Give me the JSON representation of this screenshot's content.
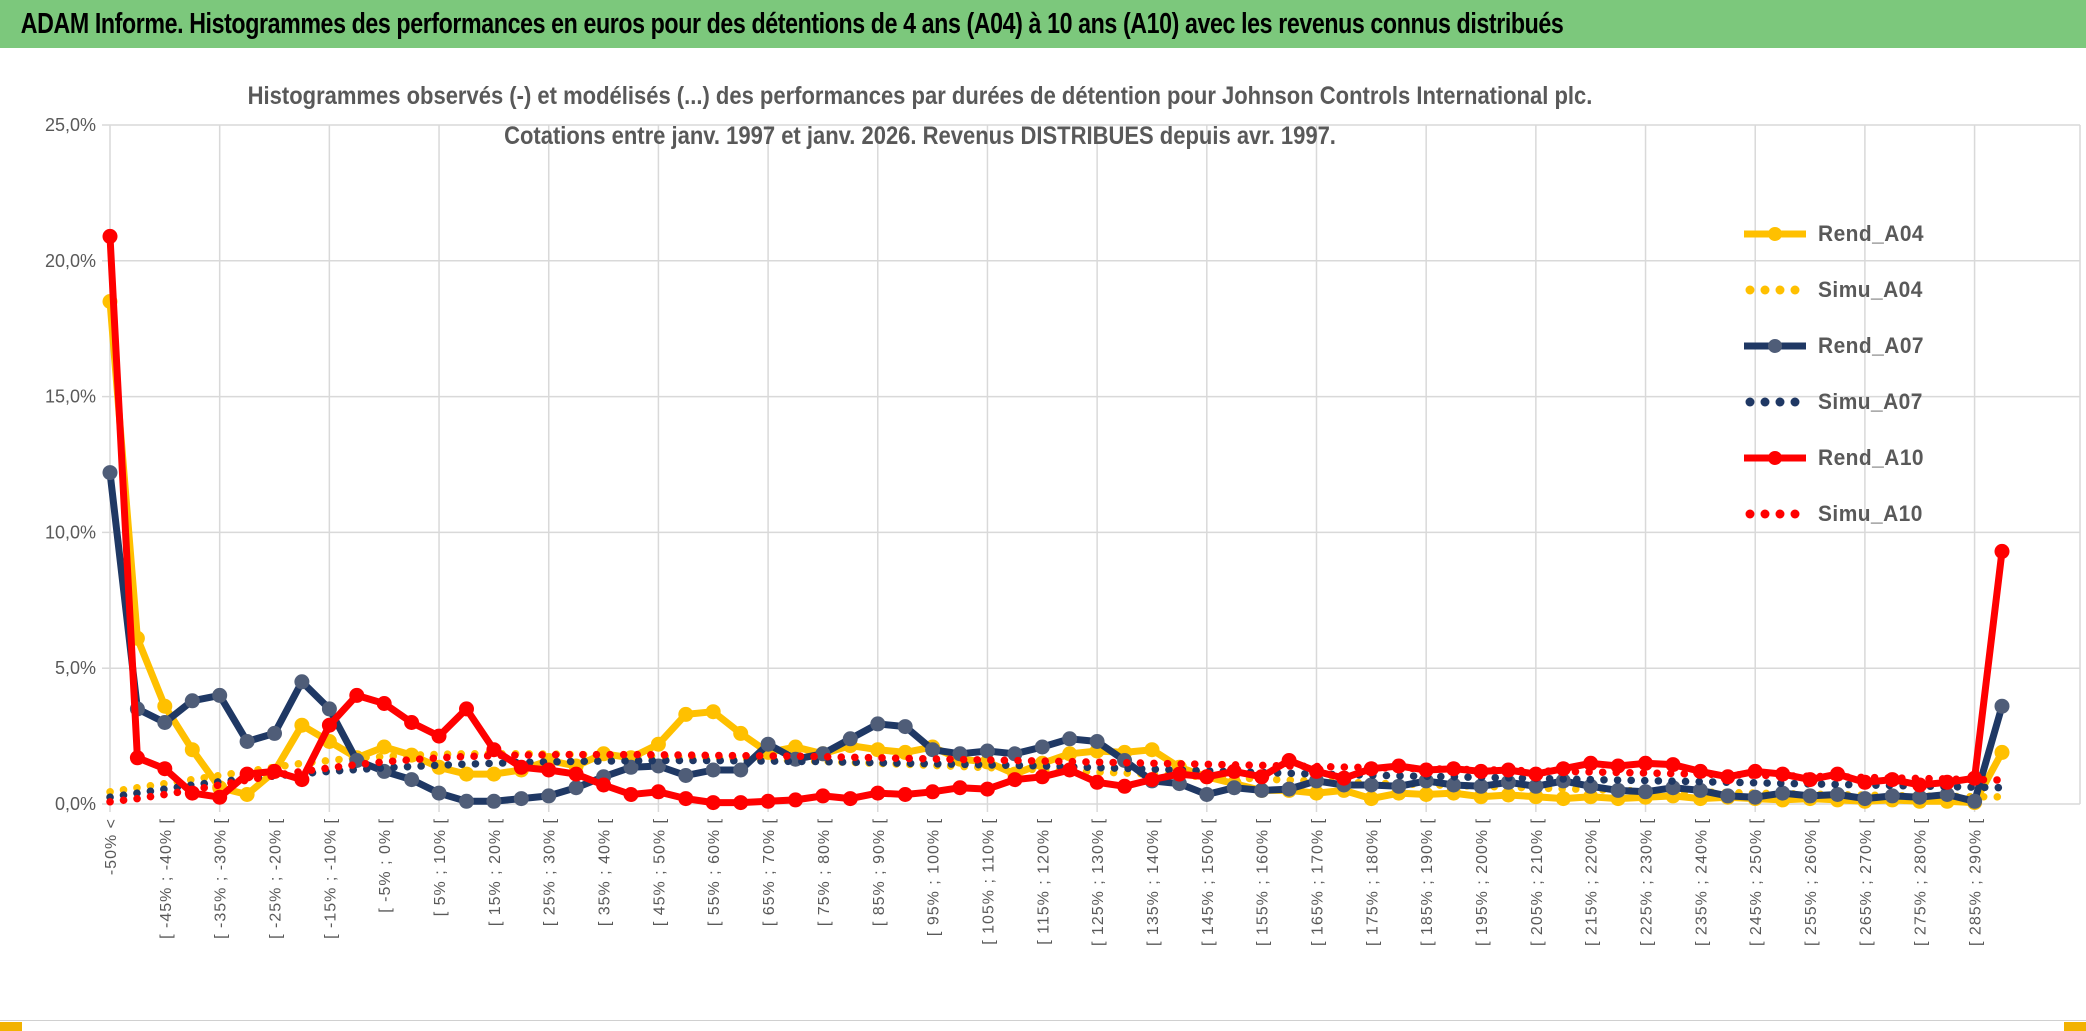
{
  "header": {
    "title": "ADAM Informe. Histogrammes des performances en euros pour des détentions de 4 ans (A04) à 10 ans (A10) avec les revenus connus distribués"
  },
  "chart": {
    "title_line1": "Histogrammes observés (-) et modélisés (...) des performances par durées de détention pour Johnson Controls International plc.",
    "title_line2": "Cotations entre janv. 1997 et janv. 2026. Revenus DISTRIBUES depuis avr. 1997."
  },
  "colors": {
    "header_bg": "#7CC87C",
    "accent_gold": "#F2B200",
    "grid": "#D9D9D9",
    "axis_text": "#595959",
    "gold_series": "#FFC000",
    "navy_series": "#1F3864",
    "navy_marker": "#4F5D78",
    "red_series": "#FF0000"
  },
  "chart_data": {
    "type": "line",
    "title": "Histogrammes observés (-) et modélisés (...) des performances par durées de détention pour Johnson Controls International plc.",
    "subtitle": "Cotations entre janv. 1997 et janv. 2026. Revenus DISTRIBUES depuis avr. 1997.",
    "bins": 70,
    "ylim": [
      0,
      25
    ],
    "grid": true,
    "legend_position": "right",
    "y_tick_labels": [
      "0,0%",
      "5,0%",
      "10,0%",
      "15,0%",
      "20,0%",
      "25,0%"
    ],
    "x_tick_labels": [
      "-50% <",
      "[ -45% ; -40% [",
      "[ -35% ; -30% [",
      "[ -25% ; -20% [",
      "[ -15% ; -10% [",
      "[ -5% ; 0% [",
      "[ 5% ; 10% [",
      "[ 15% ; 20% [",
      "[ 25% ; 30% [",
      "[ 35% ; 40% [",
      "[ 45% ; 50% [",
      "[ 55% ; 60% [",
      "[ 65% ; 70% [",
      "[ 75% ; 80% [",
      "[ 85% ; 90% [",
      "[ 95% ; 100% [",
      "[ 105% ; 110% [",
      "[ 115% ; 120% [",
      "[ 125% ; 130% [",
      "[ 135% ; 140% [",
      "[ 145% ; 150% [",
      "[ 155% ; 160% [",
      "[ 165% ; 170% [",
      "[ 175% ; 180% [",
      "[ 185% ; 190% [",
      "[ 195% ; 200% [",
      "[ 205% ; 210% [",
      "[ 215% ; 220% [",
      "[ 225% ; 230% [",
      "[ 235% ; 240% [",
      "[ 245% ; 250% [",
      "[ 255% ; 260% [",
      "[ 265% ; 270% [",
      "[ 275% ; 280% [",
      "[ 285% ; 290% ["
    ],
    "x_tick_note": "labels apply to every second bin starting at bin 0; bins are 5%-wide performance intervals, first and last bins are catch-all",
    "series": [
      {
        "name": "Rend_A04",
        "style": "solid",
        "color": "#FFC000",
        "marker": "#FFC000",
        "values": [
          18.5,
          6.1,
          3.6,
          2.0,
          0.6,
          0.35,
          1.2,
          2.9,
          2.3,
          1.7,
          2.1,
          1.8,
          1.35,
          1.1,
          1.1,
          1.25,
          1.6,
          1.4,
          1.85,
          1.7,
          2.2,
          3.3,
          3.4,
          2.6,
          1.9,
          2.1,
          1.85,
          2.15,
          2.0,
          1.9,
          2.1,
          1.65,
          1.55,
          1.1,
          1.5,
          1.85,
          1.95,
          1.9,
          2.0,
          1.35,
          1.0,
          0.75,
          0.5,
          0.5,
          0.4,
          0.5,
          0.2,
          0.4,
          0.35,
          0.4,
          0.27,
          0.33,
          0.27,
          0.2,
          0.27,
          0.2,
          0.25,
          0.3,
          0.2,
          0.25,
          0.2,
          0.15,
          0.2,
          0.15,
          0.1,
          0.15,
          0.1,
          0.1,
          0.05,
          1.9
        ]
      },
      {
        "name": "Simu_A04",
        "style": "dotted",
        "color": "#FFC000",
        "values": [
          0.45,
          0.6,
          0.75,
          0.9,
          1.05,
          1.2,
          1.35,
          1.5,
          1.6,
          1.7,
          1.75,
          1.8,
          1.83,
          1.85,
          1.85,
          1.85,
          1.84,
          1.82,
          1.8,
          1.78,
          1.75,
          1.72,
          1.7,
          1.67,
          1.64,
          1.6,
          1.57,
          1.53,
          1.5,
          1.46,
          1.42,
          1.38,
          1.34,
          1.3,
          1.26,
          1.22,
          1.18,
          1.14,
          1.1,
          1.05,
          1.0,
          0.96,
          0.92,
          0.88,
          0.84,
          0.8,
          0.77,
          0.74,
          0.71,
          0.68,
          0.65,
          0.62,
          0.59,
          0.56,
          0.53,
          0.5,
          0.48,
          0.46,
          0.44,
          0.42,
          0.4,
          0.38,
          0.36,
          0.34,
          0.33,
          0.31,
          0.3,
          0.28,
          0.27,
          0.26
        ]
      },
      {
        "name": "Rend_A07",
        "style": "solid",
        "color": "#1F3864",
        "marker": "#4F5D78",
        "values": [
          12.2,
          3.5,
          3.0,
          3.8,
          4.0,
          2.3,
          2.6,
          4.5,
          3.5,
          1.6,
          1.2,
          0.9,
          0.4,
          0.1,
          0.1,
          0.2,
          0.3,
          0.6,
          1.0,
          1.35,
          1.4,
          1.05,
          1.25,
          1.25,
          2.2,
          1.65,
          1.85,
          2.4,
          2.95,
          2.85,
          2.0,
          1.85,
          1.95,
          1.85,
          2.1,
          2.4,
          2.3,
          1.6,
          0.85,
          0.75,
          0.35,
          0.6,
          0.5,
          0.55,
          0.85,
          0.7,
          0.7,
          0.65,
          0.85,
          0.7,
          0.65,
          0.8,
          0.65,
          0.85,
          0.65,
          0.5,
          0.45,
          0.6,
          0.5,
          0.3,
          0.25,
          0.4,
          0.3,
          0.35,
          0.2,
          0.3,
          0.25,
          0.35,
          0.1,
          3.6
        ]
      },
      {
        "name": "Simu_A07",
        "style": "dotted",
        "color": "#1F3864",
        "values": [
          0.25,
          0.4,
          0.55,
          0.7,
          0.82,
          0.93,
          1.03,
          1.12,
          1.2,
          1.27,
          1.33,
          1.38,
          1.43,
          1.47,
          1.5,
          1.53,
          1.55,
          1.57,
          1.58,
          1.59,
          1.6,
          1.6,
          1.6,
          1.59,
          1.58,
          1.57,
          1.56,
          1.54,
          1.52,
          1.5,
          1.48,
          1.46,
          1.44,
          1.42,
          1.4,
          1.37,
          1.34,
          1.31,
          1.28,
          1.25,
          1.22,
          1.19,
          1.16,
          1.13,
          1.1,
          1.08,
          1.06,
          1.04,
          1.02,
          1.0,
          0.98,
          0.96,
          0.94,
          0.92,
          0.9,
          0.88,
          0.86,
          0.84,
          0.82,
          0.8,
          0.78,
          0.76,
          0.74,
          0.72,
          0.7,
          0.68,
          0.66,
          0.64,
          0.62,
          0.6
        ]
      },
      {
        "name": "Rend_A10",
        "style": "solid",
        "color": "#FF0000",
        "marker": "#FF0000",
        "values": [
          20.9,
          1.7,
          1.3,
          0.4,
          0.25,
          1.1,
          1.2,
          0.9,
          2.9,
          4.0,
          3.7,
          3.0,
          2.5,
          3.5,
          2.0,
          1.35,
          1.25,
          1.1,
          0.7,
          0.35,
          0.45,
          0.2,
          0.05,
          0.05,
          0.1,
          0.15,
          0.3,
          0.2,
          0.4,
          0.35,
          0.45,
          0.6,
          0.55,
          0.9,
          1.0,
          1.25,
          0.8,
          0.65,
          0.9,
          1.1,
          1.0,
          1.2,
          1.0,
          1.6,
          1.2,
          0.95,
          1.3,
          1.4,
          1.25,
          1.3,
          1.2,
          1.25,
          1.1,
          1.3,
          1.5,
          1.4,
          1.5,
          1.45,
          1.2,
          1.0,
          1.2,
          1.1,
          0.9,
          1.1,
          0.8,
          0.9,
          0.7,
          0.8,
          0.95,
          9.3
        ]
      },
      {
        "name": "Simu_A10",
        "style": "dotted",
        "color": "#FF0000",
        "values": [
          0.08,
          0.2,
          0.35,
          0.52,
          0.7,
          0.88,
          1.05,
          1.2,
          1.33,
          1.45,
          1.55,
          1.63,
          1.7,
          1.75,
          1.78,
          1.8,
          1.81,
          1.82,
          1.82,
          1.82,
          1.81,
          1.8,
          1.79,
          1.78,
          1.77,
          1.76,
          1.74,
          1.72,
          1.7,
          1.68,
          1.66,
          1.64,
          1.62,
          1.6,
          1.58,
          1.56,
          1.54,
          1.52,
          1.5,
          1.48,
          1.46,
          1.44,
          1.42,
          1.4,
          1.38,
          1.36,
          1.34,
          1.32,
          1.3,
          1.28,
          1.26,
          1.24,
          1.22,
          1.2,
          1.18,
          1.16,
          1.14,
          1.12,
          1.1,
          1.08,
          1.06,
          1.04,
          1.02,
          1.0,
          0.98,
          0.96,
          0.94,
          0.92,
          0.9,
          0.88
        ]
      }
    ],
    "legend": [
      "Rend_A04",
      "Simu_A04",
      "Rend_A07",
      "Simu_A07",
      "Rend_A10",
      "Simu_A10"
    ]
  }
}
